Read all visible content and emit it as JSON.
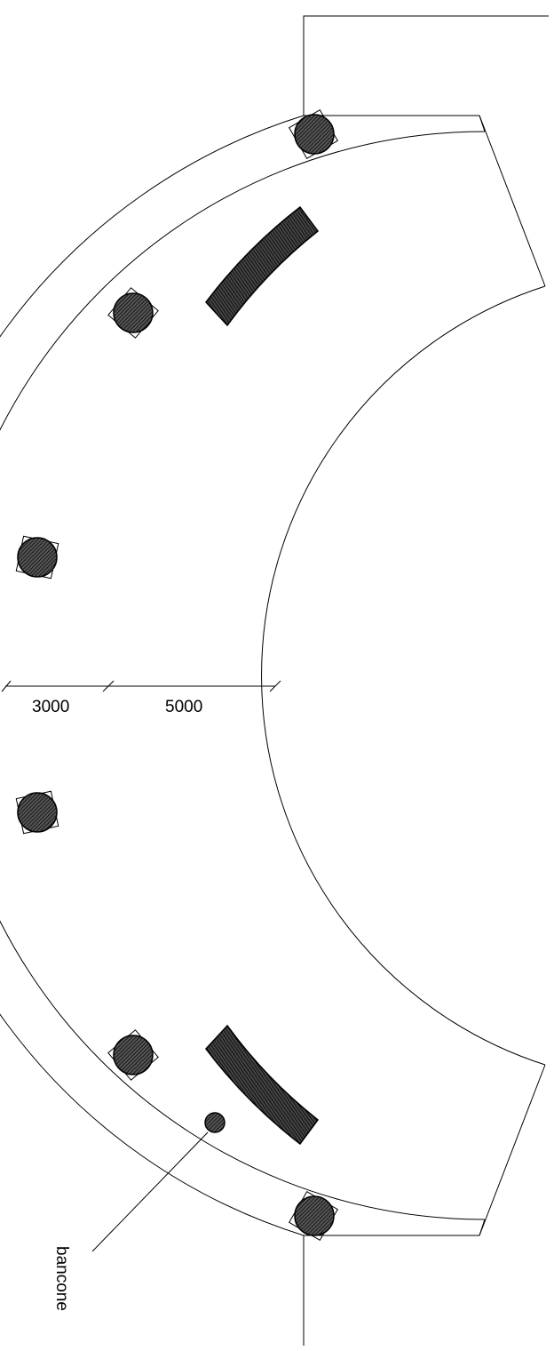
{
  "dimensions": {
    "outer_width": "3000",
    "inner_width": "5000"
  },
  "labels": {
    "counter_label": "bancone"
  }
}
